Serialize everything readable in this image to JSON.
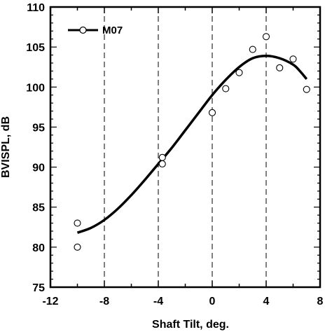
{
  "chart_data": {
    "type": "scatter",
    "title": "",
    "xlabel": "Shaft Tilt, deg.",
    "ylabel": "BVISPL, dB",
    "xlim": [
      -12,
      8
    ],
    "ylim": [
      75,
      110
    ],
    "xticks": [
      -12,
      -8,
      -4,
      0,
      4,
      8
    ],
    "xtick_labels": [
      "-12",
      "-8",
      "-4",
      "0",
      "4",
      "8"
    ],
    "yticks": [
      75,
      80,
      85,
      90,
      95,
      100,
      105,
      110
    ],
    "ytick_labels": [
      "75",
      "80",
      "85",
      "90",
      "95",
      "100",
      "105",
      "110"
    ],
    "grid": "vertical dashed",
    "legend": {
      "position": "top-left",
      "entries": [
        "M07"
      ]
    },
    "series": [
      {
        "name": "M07",
        "marker": "open-circle",
        "points": [
          {
            "x": -10,
            "y": 83.0
          },
          {
            "x": -10,
            "y": 80.0
          },
          {
            "x": -3.7,
            "y": 91.2
          },
          {
            "x": -3.7,
            "y": 90.4
          },
          {
            "x": 0,
            "y": 96.8
          },
          {
            "x": 1,
            "y": 99.8
          },
          {
            "x": 2,
            "y": 101.8
          },
          {
            "x": 3,
            "y": 104.7
          },
          {
            "x": 4,
            "y": 106.3
          },
          {
            "x": 5,
            "y": 102.4
          },
          {
            "x": 6,
            "y": 103.5
          },
          {
            "x": 7,
            "y": 99.7
          }
        ],
        "fit_curve": {
          "x": [
            -10,
            -9,
            -8,
            -7,
            -6,
            -5,
            -4,
            -3,
            -2,
            -1,
            0,
            1,
            2,
            3,
            4,
            5,
            6,
            6.5,
            7
          ],
          "y": [
            81.8,
            82.4,
            83.4,
            84.8,
            86.5,
            88.4,
            90.4,
            92.4,
            94.6,
            96.8,
            99.0,
            100.9,
            102.5,
            103.6,
            103.9,
            103.6,
            102.8,
            102.0,
            101.0
          ]
        }
      }
    ]
  }
}
